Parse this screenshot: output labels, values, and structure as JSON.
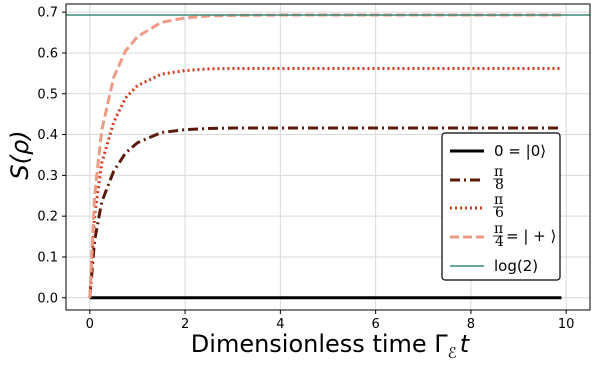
{
  "chart_data": {
    "type": "line",
    "xlabel": "Dimensionless time Γ",
    "xlabel_subscript": "ℰ",
    "xlabel_suffix": "t",
    "ylabel": "S(ρ)",
    "xlim": [
      -0.5,
      10.5
    ],
    "ylim": [
      -0.03,
      0.72
    ],
    "xticks": [
      0,
      2,
      4,
      6,
      8,
      10
    ],
    "yticks": [
      0.0,
      0.1,
      0.2,
      0.3,
      0.4,
      0.5,
      0.6,
      0.7
    ],
    "ytick_labels": [
      "0.0",
      "0.1",
      "0.2",
      "0.3",
      "0.4",
      "0.5",
      "0.6",
      "0.7"
    ],
    "grid": true,
    "legend_position": "lower-right",
    "series": [
      {
        "name": "0 = |0⟩",
        "color": "#000000",
        "style": "solid",
        "asymptote": 0.0,
        "x": [
          0,
          9.9
        ],
        "y": [
          0.0,
          0.0
        ]
      },
      {
        "name": "π/8",
        "color": "#5c1a0b",
        "style": "dashdot",
        "asymptote": 0.416,
        "x": [
          0,
          0.1,
          0.25,
          0.5,
          0.75,
          1.0,
          1.5,
          2.0,
          2.5,
          3.0,
          4.0,
          6.0,
          8.0,
          9.9
        ],
        "y": [
          0.0,
          0.14,
          0.235,
          0.31,
          0.355,
          0.38,
          0.405,
          0.412,
          0.415,
          0.416,
          0.416,
          0.416,
          0.416,
          0.416
        ]
      },
      {
        "name": "π/6",
        "color": "#d13a1e",
        "style": "dotted",
        "asymptote": 0.562,
        "x": [
          0,
          0.1,
          0.25,
          0.5,
          0.75,
          1.0,
          1.5,
          2.0,
          2.5,
          3.0,
          4.0,
          6.0,
          8.0,
          9.9
        ],
        "y": [
          0.0,
          0.2,
          0.33,
          0.43,
          0.49,
          0.52,
          0.548,
          0.557,
          0.561,
          0.562,
          0.562,
          0.562,
          0.562,
          0.562
        ]
      },
      {
        "name": "π/4 = |+⟩",
        "color": "#ef9a84",
        "style": "dashed",
        "asymptote": 0.693,
        "x": [
          0,
          0.1,
          0.25,
          0.5,
          0.75,
          1.0,
          1.5,
          2.0,
          2.5,
          3.0,
          4.0,
          6.0,
          8.0,
          9.9
        ],
        "y": [
          0.0,
          0.25,
          0.41,
          0.54,
          0.605,
          0.64,
          0.675,
          0.686,
          0.691,
          0.692,
          0.693,
          0.693,
          0.693,
          0.693
        ]
      },
      {
        "name": "log(2)",
        "color": "#3a8a7a",
        "style": "hline",
        "y_value": 0.693
      }
    ]
  }
}
